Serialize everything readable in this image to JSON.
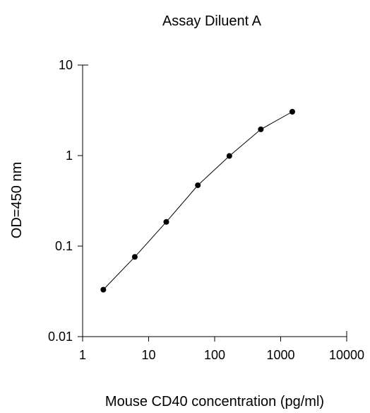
{
  "chart_data": {
    "type": "line",
    "title": "Assay Diluent A",
    "xlabel": "Mouse CD40 concentration (pg/ml)",
    "ylabel": "OD=450 nm",
    "x_scale": "log",
    "y_scale": "log",
    "xlim": [
      1,
      10000
    ],
    "ylim": [
      0.01,
      10
    ],
    "x_ticks": [
      "1",
      "10",
      "100",
      "1000",
      "10000"
    ],
    "y_ticks": [
      "10",
      "1",
      "0.1",
      "0.01"
    ],
    "grid": false,
    "series": [
      {
        "x": [
          2.06,
          6.17,
          18.5,
          55.6,
          167,
          500,
          1500
        ],
        "y": [
          0.033,
          0.076,
          0.185,
          0.47,
          0.99,
          1.95,
          3.05
        ]
      }
    ],
    "colors": {
      "line": "#000000",
      "marker": "#000000"
    }
  }
}
